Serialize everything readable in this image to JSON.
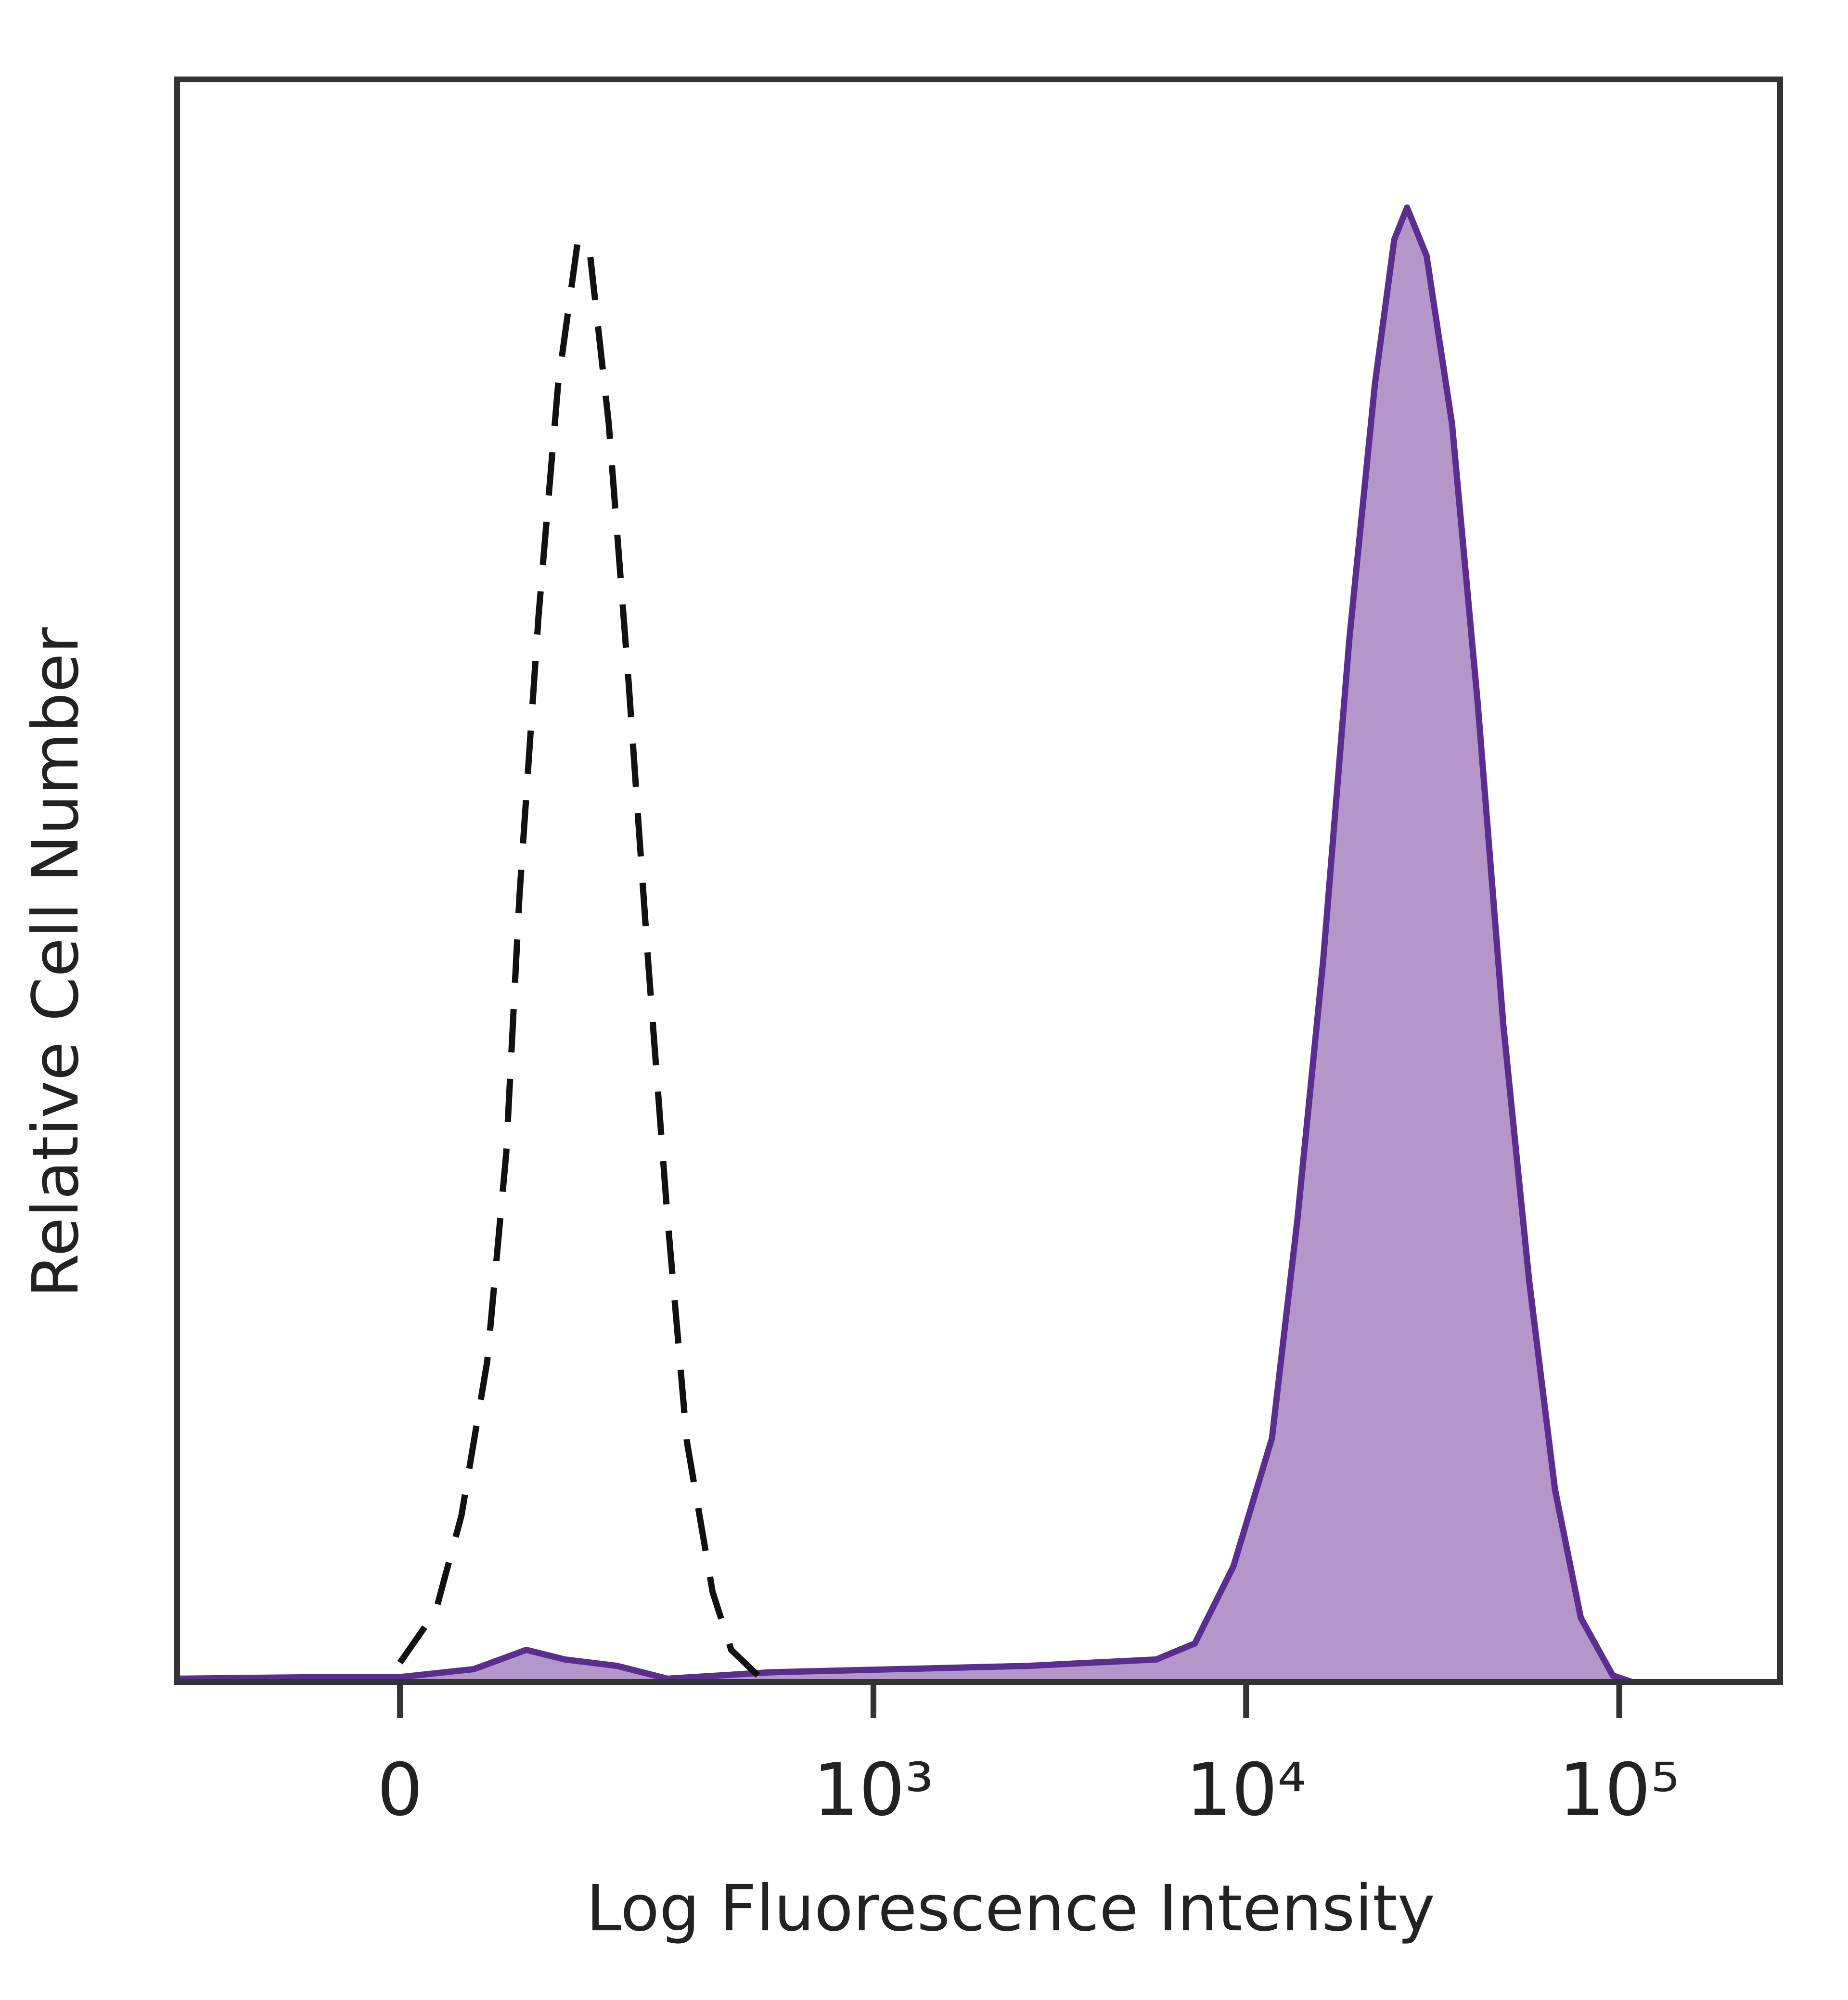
{
  "chart_data": {
    "type": "histogram-overlay",
    "x_label": "Log Fluorescence Intensity",
    "y_label": "Relative Cell Number",
    "xscale": "biexponential",
    "xlim": [
      -200,
      270000
    ],
    "ylim": [
      0,
      100
    ],
    "xticks": [
      0,
      {
        "value": 1000,
        "label": "10³"
      },
      {
        "value": 10000,
        "label": "10⁴"
      },
      {
        "value": 100000,
        "label": "10⁵"
      }
    ],
    "series": [
      {
        "color": "#111111",
        "style": "dashed",
        "fill": null,
        "x": [
          0,
          24,
          42,
          61,
          76,
          87,
          104,
          123,
          144,
          158,
          181,
          208,
          238,
          271,
          308,
          364,
          410,
          486
        ],
        "values": [
          1.2,
          4.4,
          10.4,
          20,
          33,
          49,
          66.5,
          81,
          90,
          89,
          78.5,
          62.5,
          45,
          29,
          15,
          5.6,
          2,
          0.4
        ]
      },
      {
        "color": "#5b2d90",
        "style": "solid",
        "fill": "#b596c9",
        "x": [
          -198,
          -55,
          0,
          51,
          93,
          130,
          192,
          271,
          526,
          1172,
          2596,
          5745,
          7290,
          9245,
          11730,
          13720,
          16090,
          18900,
          22150,
          24950,
          27000,
          30460,
          35640,
          41800,
          48920,
          57400,
          67300,
          78900,
          96100,
          108000
        ],
        "values": [
          0.2,
          0.3,
          0.3,
          0.8,
          2,
          1.4,
          1,
          0.2,
          0.6,
          0.8,
          1,
          1.4,
          2.4,
          7.2,
          15.2,
          28.8,
          45,
          65,
          81,
          90,
          92,
          89,
          78.5,
          61,
          41,
          25,
          12,
          4,
          0.4,
          0
        ]
      }
    ]
  }
}
